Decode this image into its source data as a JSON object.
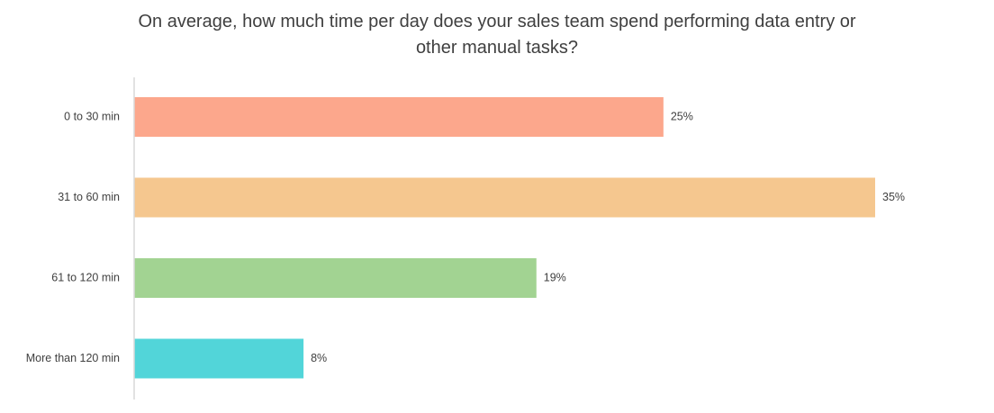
{
  "chart_data": {
    "type": "bar",
    "orientation": "horizontal",
    "title_lines": [
      "On average, how much time per day does your sales team spend performing data entry or",
      "other manual tasks?"
    ],
    "xlabel": "",
    "ylabel": "",
    "categories": [
      "0 to 30 min",
      "31 to 60 min",
      "61 to 120 min",
      "More than 120 min"
    ],
    "values": [
      25,
      35,
      19,
      8
    ],
    "value_labels": [
      "25%",
      "35%",
      "19%",
      "8%"
    ],
    "unit": "%",
    "xlim": [
      0,
      35
    ],
    "colors": [
      "#fca78c",
      "#f5c78f",
      "#a2d392",
      "#52d5d9"
    ],
    "axis_color": "#d9d9d9",
    "grid": false,
    "legend": "none"
  }
}
